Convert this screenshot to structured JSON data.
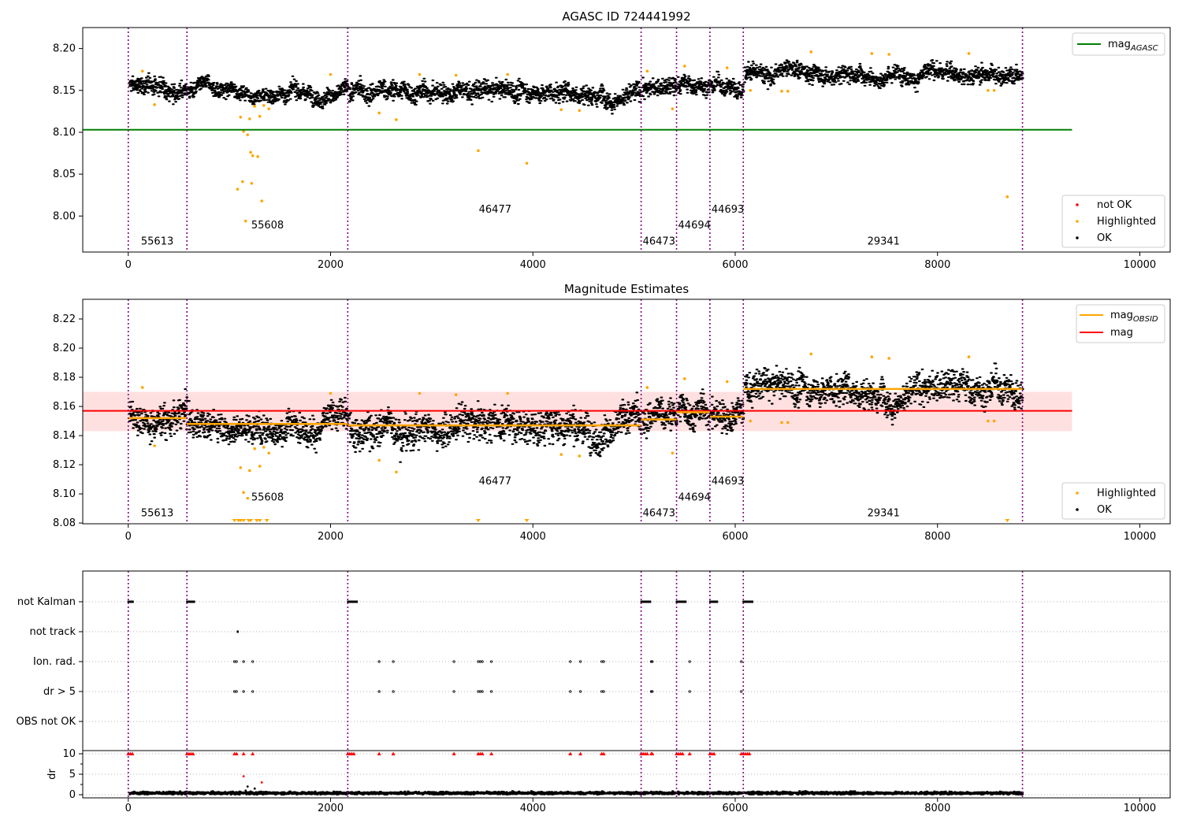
{
  "figure_title": "AGASC ID 724441992",
  "chart_data": [
    {
      "type": "scatter",
      "title": "AGASC ID 724441992",
      "xlim": [
        -450,
        10300
      ],
      "ylim": [
        7.957,
        8.225
      ],
      "xticks": [
        0,
        2000,
        4000,
        6000,
        8000,
        10000
      ],
      "yticks": [
        8.0,
        8.05,
        8.1,
        8.15,
        8.2
      ],
      "ytick_labels": [
        "8.00",
        "8.05",
        "8.10",
        "8.15",
        "8.20"
      ],
      "mag_agasc": 8.103,
      "mag_agasc_range": [
        -450,
        9330
      ],
      "obsid_boundaries": [
        0,
        580,
        2170,
        5070,
        5420,
        5750,
        6080,
        8840
      ],
      "obsids": [
        {
          "id": "55613",
          "x": 110,
          "y": 7.966
        },
        {
          "id": "55608",
          "x": 1200,
          "y": 7.985
        },
        {
          "id": "46477",
          "x": 3450,
          "y": 8.004
        },
        {
          "id": "46473",
          "x": 5070,
          "y": 7.966
        },
        {
          "id": "44694",
          "x": 5420,
          "y": 7.985
        },
        {
          "id": "44693",
          "x": 5750,
          "y": 8.004
        },
        {
          "id": "29341",
          "x": 7290,
          "y": 7.966
        }
      ],
      "series_levels": [
        {
          "x0": 0,
          "x1": 580,
          "level": 8.155,
          "spread": 0.009
        },
        {
          "x0": 580,
          "x1": 2170,
          "level": 8.149,
          "spread": 0.008
        },
        {
          "x0": 2170,
          "x1": 5070,
          "level": 8.148,
          "spread": 0.01
        },
        {
          "x0": 5070,
          "x1": 5420,
          "level": 8.152,
          "spread": 0.009
        },
        {
          "x0": 5420,
          "x1": 5750,
          "level": 8.157,
          "spread": 0.009
        },
        {
          "x0": 5750,
          "x1": 6080,
          "level": 8.154,
          "spread": 0.009
        },
        {
          "x0": 6080,
          "x1": 8840,
          "level": 8.172,
          "spread": 0.009
        }
      ],
      "highlighted_points": [
        [
          140,
          8.173
        ],
        [
          260,
          8.133
        ],
        [
          1080,
          8.032
        ],
        [
          1110,
          8.118
        ],
        [
          1130,
          8.041
        ],
        [
          1140,
          8.101
        ],
        [
          1160,
          7.994
        ],
        [
          1180,
          8.097
        ],
        [
          1200,
          8.116
        ],
        [
          1210,
          8.076
        ],
        [
          1220,
          8.039
        ],
        [
          1230,
          8.072
        ],
        [
          1250,
          8.131
        ],
        [
          1280,
          8.071
        ],
        [
          1300,
          8.119
        ],
        [
          1320,
          8.018
        ],
        [
          1340,
          8.132
        ],
        [
          1390,
          8.128
        ],
        [
          2000,
          8.169
        ],
        [
          2480,
          8.123
        ],
        [
          2650,
          8.115
        ],
        [
          2880,
          8.169
        ],
        [
          3240,
          8.168
        ],
        [
          3460,
          8.078
        ],
        [
          3750,
          8.169
        ],
        [
          3940,
          8.063
        ],
        [
          4280,
          8.127
        ],
        [
          4460,
          8.126
        ],
        [
          5130,
          8.173
        ],
        [
          5380,
          8.128
        ],
        [
          5500,
          8.179
        ],
        [
          5920,
          8.177
        ],
        [
          6150,
          8.15
        ],
        [
          6460,
          8.149
        ],
        [
          6520,
          8.149
        ],
        [
          6750,
          8.196
        ],
        [
          7350,
          8.194
        ],
        [
          7520,
          8.193
        ],
        [
          8310,
          8.194
        ],
        [
          8500,
          8.15
        ],
        [
          8560,
          8.15
        ],
        [
          8690,
          8.023
        ]
      ],
      "legend_upper": [
        {
          "label": "mag",
          "subscript": "AGASC",
          "color": "#008000",
          "marker": "line"
        }
      ],
      "legend_lower": [
        {
          "label": "not OK",
          "color": "#ff0000",
          "marker": "dot"
        },
        {
          "label": "Highlighted",
          "color": "#ffa500",
          "marker": "dot"
        },
        {
          "label": "OK",
          "color": "#000000",
          "marker": "dot"
        }
      ]
    },
    {
      "type": "scatter",
      "title": "Magnitude Estimates",
      "xlim": [
        -450,
        10300
      ],
      "ylim": [
        8.0795,
        8.2335
      ],
      "xticks": [
        0,
        2000,
        4000,
        6000,
        8000,
        10000
      ],
      "yticks": [
        8.08,
        8.1,
        8.12,
        8.14,
        8.16,
        8.18,
        8.2,
        8.22
      ],
      "ytick_labels": [
        "8.08",
        "8.10",
        "8.12",
        "8.14",
        "8.16",
        "8.18",
        "8.20",
        "8.22"
      ],
      "mag": 8.157,
      "mag_band": [
        8.143,
        8.17
      ],
      "mag_range": [
        -450,
        9330
      ],
      "mag_obsid": [
        {
          "x0": 0,
          "x1": 580,
          "value": 8.152
        },
        {
          "x0": 580,
          "x1": 2170,
          "value": 8.148
        },
        {
          "x0": 2170,
          "x1": 5070,
          "value": 8.147
        },
        {
          "x0": 5070,
          "x1": 5420,
          "value": 8.151
        },
        {
          "x0": 5420,
          "x1": 5750,
          "value": 8.156
        },
        {
          "x0": 5750,
          "x1": 6080,
          "value": 8.153
        },
        {
          "x0": 6080,
          "x1": 8840,
          "value": 8.172
        }
      ],
      "obsids": [
        {
          "id": "55613",
          "x": 110,
          "y": 8.0845
        },
        {
          "id": "55608",
          "x": 1200,
          "y": 8.0955
        },
        {
          "id": "46477",
          "x": 3450,
          "y": 8.1065
        },
        {
          "id": "46473",
          "x": 5070,
          "y": 8.0845
        },
        {
          "id": "44694",
          "x": 5420,
          "y": 8.0955
        },
        {
          "id": "44693",
          "x": 5750,
          "y": 8.1065
        },
        {
          "id": "29341",
          "x": 7290,
          "y": 8.0845
        }
      ],
      "clipped_low_points": [
        1050,
        1090,
        1110,
        1140,
        1190,
        1210,
        1270,
        1300,
        1370,
        3460,
        3940,
        8690
      ],
      "legend_upper": [
        {
          "label": "mag",
          "subscript": "OBSID",
          "color": "#ffa500",
          "marker": "line"
        },
        {
          "label": "mag",
          "color": "#ff0000",
          "marker": "line"
        }
      ],
      "legend_lower": [
        {
          "label": "Highlighted",
          "color": "#ffa500",
          "marker": "dot"
        },
        {
          "label": "OK",
          "color": "#000000",
          "marker": "dot"
        }
      ]
    },
    {
      "type": "scatter",
      "title": "",
      "xlim": [
        -450,
        10300
      ],
      "flag_rows": [
        "not Kalman",
        "not track",
        "Ion. rad.",
        "dr > 5",
        "OBS not OK"
      ],
      "flag_points": {
        "not Kalman": [
          [
            0,
            50
          ],
          [
            580,
            660
          ],
          [
            2170,
            2260
          ],
          [
            5070,
            5160
          ],
          [
            5420,
            5510
          ],
          [
            5750,
            5830
          ],
          [
            6080,
            6170
          ]
        ],
        "not track": [
          [
            1080,
            1090
          ]
        ],
        "Ion. rad.": [
          1050,
          1070,
          1140,
          1230,
          2480,
          2620,
          3220,
          3460,
          3480,
          3500,
          3590,
          4370,
          4470,
          4680,
          4700,
          5170,
          5180,
          5550,
          6060
        ],
        "dr > 5": [
          1050,
          1070,
          1140,
          1230,
          2480,
          2620,
          3220,
          3460,
          3480,
          3500,
          3590,
          4370,
          4470,
          4680,
          4700,
          5170,
          5180,
          5550,
          6060
        ]
      },
      "dr_ylabel": "dr",
      "dr_ylim": [
        -0.3,
        10.8
      ],
      "dr_yticks": [
        0,
        5,
        10
      ],
      "dr_clipped_at": 10,
      "dr_clipped_points": [
        0,
        20,
        40,
        580,
        600,
        620,
        640,
        1050,
        1070,
        1140,
        1230,
        2170,
        2190,
        2210,
        2230,
        2480,
        2620,
        3220,
        3460,
        3480,
        3500,
        3590,
        4370,
        4470,
        4680,
        4700,
        5070,
        5090,
        5110,
        5130,
        5170,
        5180,
        5420,
        5440,
        5460,
        5480,
        5550,
        5750,
        5770,
        5790,
        6060,
        6080,
        6100,
        6120,
        6140
      ],
      "dr_outliers": [
        [
          1140,
          4.5
        ],
        [
          1180,
          2.0
        ],
        [
          1250,
          1.5
        ],
        [
          1320,
          3.0
        ],
        [
          1160,
          1.0
        ],
        [
          1210,
          0.8
        ]
      ],
      "dr_typical": 0.4
    }
  ]
}
